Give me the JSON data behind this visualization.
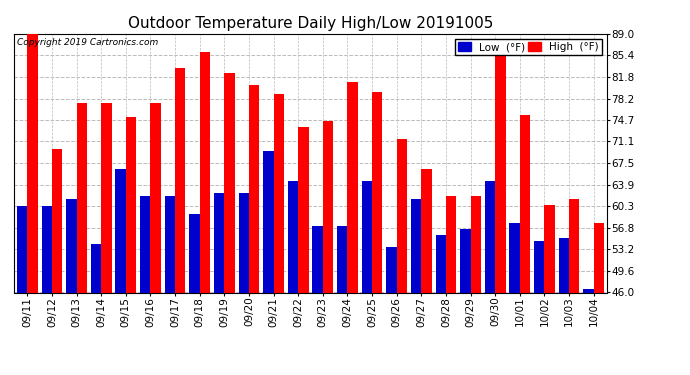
{
  "title": "Outdoor Temperature Daily High/Low 20191005",
  "copyright": "Copyright 2019 Cartronics.com",
  "categories": [
    "09/11",
    "09/12",
    "09/13",
    "09/14",
    "09/15",
    "09/16",
    "09/17",
    "09/18",
    "09/19",
    "09/20",
    "09/21",
    "09/22",
    "09/23",
    "09/24",
    "09/25",
    "09/26",
    "09/27",
    "09/28",
    "09/29",
    "09/30",
    "10/01",
    "10/02",
    "10/03",
    "10/04"
  ],
  "high": [
    89.0,
    69.8,
    77.5,
    77.5,
    75.2,
    77.5,
    83.3,
    86.0,
    82.4,
    80.5,
    79.0,
    73.5,
    74.5,
    81.0,
    79.3,
    71.5,
    66.5,
    62.0,
    62.0,
    87.5,
    75.5,
    60.5,
    61.5,
    57.5
  ],
  "low": [
    60.3,
    60.3,
    61.5,
    54.0,
    66.5,
    62.0,
    62.0,
    59.0,
    62.5,
    62.5,
    69.5,
    64.5,
    57.0,
    57.0,
    64.5,
    53.5,
    61.5,
    55.5,
    56.5,
    64.5,
    57.5,
    54.5,
    55.0,
    46.5
  ],
  "high_color": "#ff0000",
  "low_color": "#0000cc",
  "ylim_min": 46.0,
  "ylim_max": 89.0,
  "yticks": [
    46.0,
    49.6,
    53.2,
    56.8,
    60.3,
    63.9,
    67.5,
    71.1,
    74.7,
    78.2,
    81.8,
    85.4,
    89.0
  ],
  "background_color": "#ffffff",
  "plot_bg_color": "#ffffff",
  "grid_color": "#bbbbbb",
  "title_fontsize": 11,
  "tick_fontsize": 7.5,
  "legend_low_label": "Low  (°F)",
  "legend_high_label": "High  (°F)"
}
